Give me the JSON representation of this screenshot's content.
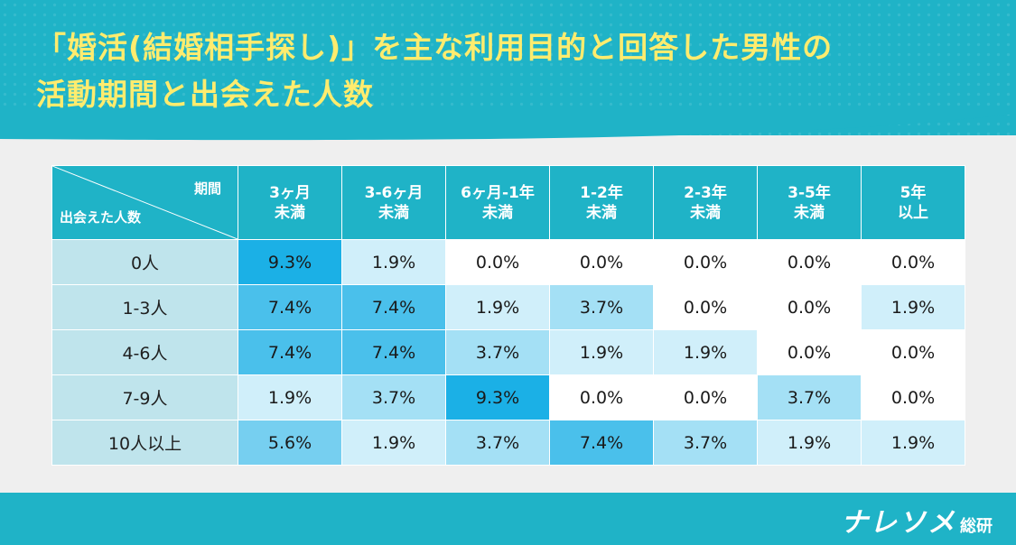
{
  "title": {
    "line1": "「婚活(結婚相手探し)」を主な利用目的と回答した男性の",
    "line2": "活動期間と出会えた人数"
  },
  "colors": {
    "header": "#1fb3c7",
    "title_text": "#ffec6e",
    "row_header": "#bfe4ec",
    "heat_max": "#1bb0e6",
    "heat_min": "#ffffff"
  },
  "chart_data": {
    "type": "heatmap",
    "corner_top": "期間",
    "corner_bottom": "出会えた人数",
    "columns": [
      {
        "line1": "3ヶ月",
        "line2": "未満"
      },
      {
        "line1": "3-6ヶ月",
        "line2": "未満"
      },
      {
        "line1": "6ヶ月-1年",
        "line2": "未満"
      },
      {
        "line1": "1-2年",
        "line2": "未満"
      },
      {
        "line1": "2-3年",
        "line2": "未満"
      },
      {
        "line1": "3-5年",
        "line2": "未満"
      },
      {
        "line1": "5年",
        "line2": "以上"
      }
    ],
    "rows": [
      "0人",
      "1-3人",
      "4-6人",
      "7-9人",
      "10人以上"
    ],
    "unit": "%",
    "values": [
      [
        9.3,
        1.9,
        0.0,
        0.0,
        0.0,
        0.0,
        0.0
      ],
      [
        7.4,
        7.4,
        1.9,
        3.7,
        0.0,
        0.0,
        1.9
      ],
      [
        7.4,
        7.4,
        3.7,
        1.9,
        1.9,
        0.0,
        0.0
      ],
      [
        1.9,
        3.7,
        9.3,
        0.0,
        0.0,
        3.7,
        0.0
      ],
      [
        5.6,
        1.9,
        3.7,
        7.4,
        3.7,
        1.9,
        1.9
      ]
    ]
  },
  "footer": {
    "logo_main": "ナレソメ",
    "logo_sub": "総研"
  }
}
